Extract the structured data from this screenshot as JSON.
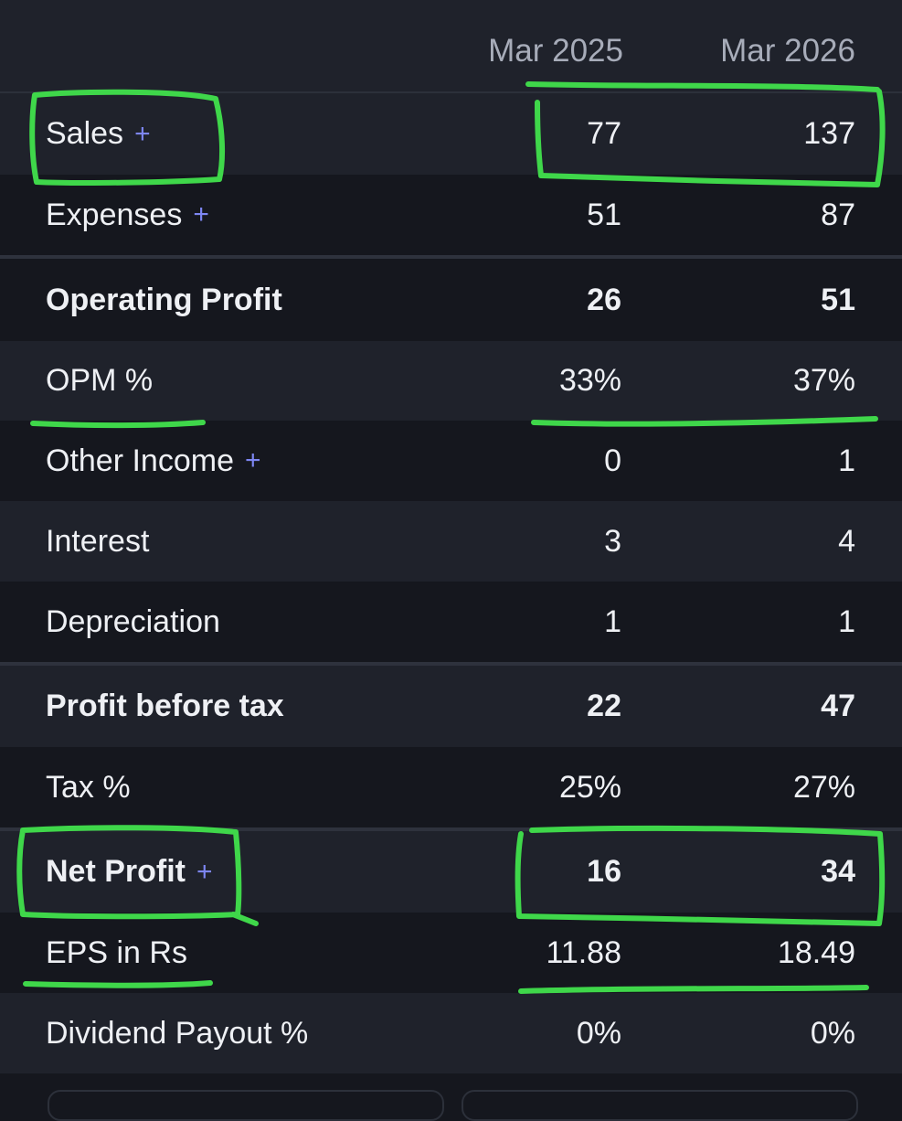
{
  "columns": [
    "Mar 2025",
    "Mar 2026"
  ],
  "rows": [
    {
      "label": "Sales",
      "expand": "+",
      "values": [
        "77",
        "137"
      ]
    },
    {
      "label": "Expenses",
      "expand": "+",
      "values": [
        "51",
        "87"
      ]
    },
    {
      "label": "Operating Profit",
      "expand": "",
      "values": [
        "26",
        "51"
      ]
    },
    {
      "label": "OPM %",
      "expand": "",
      "values": [
        "33%",
        "37%"
      ]
    },
    {
      "label": "Other Income",
      "expand": "+",
      "values": [
        "0",
        "1"
      ]
    },
    {
      "label": "Interest",
      "expand": "",
      "values": [
        "3",
        "4"
      ]
    },
    {
      "label": "Depreciation",
      "expand": "",
      "values": [
        "1",
        "1"
      ]
    },
    {
      "label": "Profit before tax",
      "expand": "",
      "values": [
        "22",
        "47"
      ]
    },
    {
      "label": "Tax %",
      "expand": "",
      "values": [
        "25%",
        "27%"
      ]
    },
    {
      "label": "Net Profit",
      "expand": "+",
      "values": [
        "16",
        "34"
      ]
    },
    {
      "label": "EPS in Rs",
      "expand": "",
      "values": [
        "11.88",
        "18.49"
      ]
    },
    {
      "label": "Dividend Payout %",
      "expand": "",
      "values": [
        "0%",
        "0%"
      ]
    }
  ],
  "colors": {
    "highlight": "#3fd74a",
    "expand_icon": "#7d86f2"
  }
}
